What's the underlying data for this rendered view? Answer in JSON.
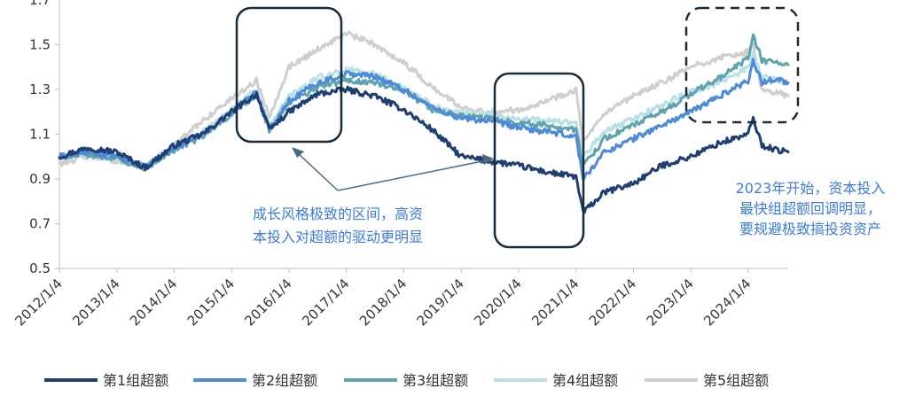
{
  "chart_data": {
    "type": "line",
    "title": "",
    "xlabel": "",
    "ylabel": "",
    "ylim": [
      0.5,
      1.7
    ],
    "yticks": [
      0.5,
      0.7,
      0.9,
      1.1,
      1.3,
      1.5
    ],
    "ytick_labels": [
      "0.5",
      "0.7",
      "0.9",
      "1.1",
      "1.3",
      "1.5"
    ],
    "x_tick_labels": [
      "2012/1/4",
      "2013/1/4",
      "2014/1/4",
      "2015/1/4",
      "2016/1/4",
      "2017/1/4",
      "2018/1/4",
      "2019/1/4",
      "2020/1/4",
      "2021/1/4",
      "2022/1/4",
      "2023/1/4",
      "2024/1/4"
    ],
    "x": [
      "2012/1/4",
      "2012/7/4",
      "2013/1/4",
      "2013/7/4",
      "2014/1/4",
      "2014/7/4",
      "2015/1/4",
      "2015/6/12",
      "2015/9/1",
      "2016/1/4",
      "2016/7/4",
      "2017/1/4",
      "2017/7/4",
      "2018/1/4",
      "2018/7/4",
      "2019/1/4",
      "2019/7/4",
      "2020/1/4",
      "2020/7/4",
      "2021/1/4",
      "2021/2/18",
      "2021/7/4",
      "2022/1/4",
      "2022/7/4",
      "2023/1/4",
      "2023/7/4",
      "2024/1/4",
      "2024/2/5",
      "2024/4/1",
      "2024/7/4",
      "2024/9/15"
    ],
    "series": [
      {
        "name": "第1组超额",
        "color": "#1f3f73",
        "values": [
          1.0,
          1.04,
          1.02,
          0.95,
          1.05,
          1.1,
          1.2,
          1.28,
          1.12,
          1.2,
          1.28,
          1.3,
          1.27,
          1.21,
          1.12,
          1.0,
          0.98,
          0.96,
          0.93,
          0.91,
          0.75,
          0.84,
          0.88,
          0.96,
          1.0,
          1.06,
          1.1,
          1.17,
          1.05,
          1.03,
          1.02
        ]
      },
      {
        "name": "第2组超额",
        "color": "#4d8bd9",
        "values": [
          1.0,
          1.02,
          1.0,
          0.95,
          1.04,
          1.1,
          1.2,
          1.29,
          1.12,
          1.25,
          1.33,
          1.37,
          1.36,
          1.3,
          1.22,
          1.17,
          1.16,
          1.13,
          1.11,
          1.09,
          0.9,
          1.02,
          1.08,
          1.14,
          1.2,
          1.27,
          1.34,
          1.43,
          1.33,
          1.35,
          1.33
        ]
      },
      {
        "name": "第3组超额",
        "color": "#5ea3ad",
        "values": [
          1.0,
          1.01,
          0.99,
          0.95,
          1.03,
          1.09,
          1.19,
          1.27,
          1.12,
          1.24,
          1.31,
          1.34,
          1.33,
          1.29,
          1.21,
          1.18,
          1.17,
          1.15,
          1.14,
          1.12,
          0.96,
          1.08,
          1.14,
          1.2,
          1.28,
          1.35,
          1.44,
          1.54,
          1.43,
          1.42,
          1.41
        ]
      },
      {
        "name": "第4组超额",
        "color": "#b9e0e6",
        "values": [
          1.0,
          1.01,
          0.99,
          0.96,
          1.04,
          1.11,
          1.21,
          1.3,
          1.13,
          1.27,
          1.35,
          1.39,
          1.37,
          1.31,
          1.23,
          1.19,
          1.19,
          1.17,
          1.16,
          1.15,
          1.0,
          1.11,
          1.17,
          1.23,
          1.29,
          1.33,
          1.4,
          1.46,
          1.36,
          1.34,
          1.33
        ]
      },
      {
        "name": "第5组超额",
        "color": "#cfcfcf",
        "values": [
          0.97,
          1.0,
          0.98,
          0.96,
          1.05,
          1.16,
          1.26,
          1.34,
          1.18,
          1.4,
          1.48,
          1.55,
          1.5,
          1.42,
          1.31,
          1.22,
          1.2,
          1.21,
          1.25,
          1.3,
          1.06,
          1.19,
          1.27,
          1.33,
          1.4,
          1.44,
          1.47,
          1.5,
          1.29,
          1.29,
          1.27
        ]
      }
    ],
    "legend_position": "bottom",
    "annotations": [
      {
        "text_lines": [
          "成长风格极致的区间，高资",
          "本投入对超额的驱动更明显"
        ]
      },
      {
        "text_lines": [
          "2023年开始，资本投入",
          "最快组超额回调明显，",
          "要规避极致搞投资资产"
        ]
      }
    ]
  }
}
